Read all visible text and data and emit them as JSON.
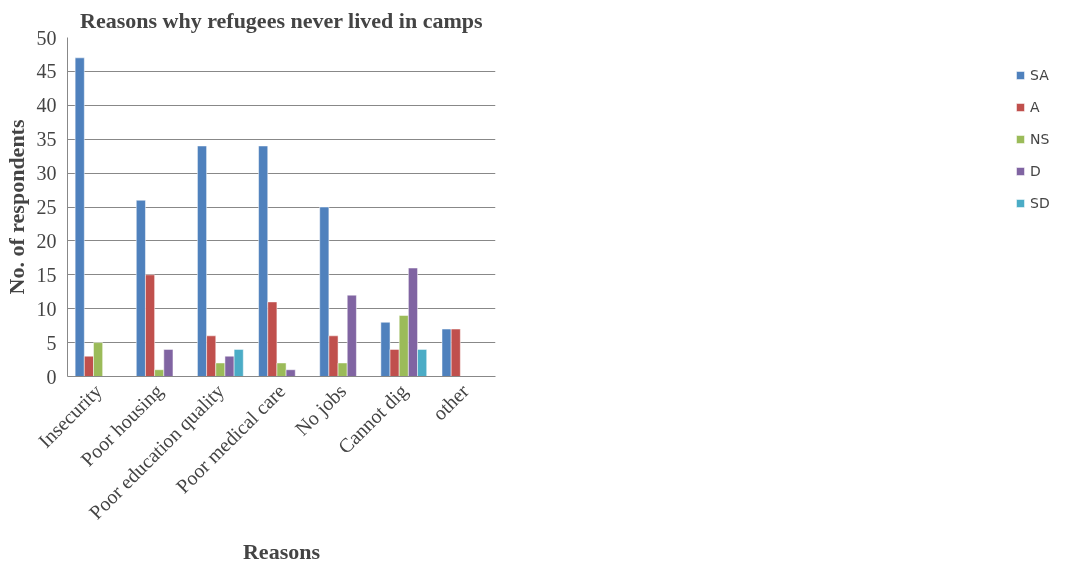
{
  "chart_data": {
    "type": "bar",
    "title": "Reasons why refugees never lived in camps",
    "xlabel": "Reasons",
    "ylabel": "No. of respondents",
    "categories": [
      "Insecurity",
      "Poor housing",
      "Poor education quality",
      "Poor medical care",
      "No jobs",
      "Cannot dig",
      "other"
    ],
    "series": [
      {
        "name": "SA",
        "color": "#4f81bd",
        "values": [
          47,
          26,
          34,
          34,
          25,
          8,
          7
        ]
      },
      {
        "name": "A",
        "color": "#c0504d",
        "values": [
          3,
          15,
          6,
          11,
          6,
          4,
          7
        ]
      },
      {
        "name": "NS",
        "color": "#9bbb59",
        "values": [
          5,
          1,
          2,
          2,
          2,
          9,
          null
        ]
      },
      {
        "name": "D",
        "color": "#8064a2",
        "values": [
          null,
          4,
          3,
          1,
          12,
          16,
          null
        ]
      },
      {
        "name": "SD",
        "color": "#4bacc6",
        "values": [
          null,
          null,
          4,
          null,
          null,
          4,
          null
        ]
      }
    ],
    "ylim": [
      0,
      50
    ],
    "yticks": [
      0,
      5,
      10,
      15,
      20,
      25,
      30,
      35,
      40,
      45,
      50
    ],
    "grid": "y",
    "legend": "right"
  }
}
